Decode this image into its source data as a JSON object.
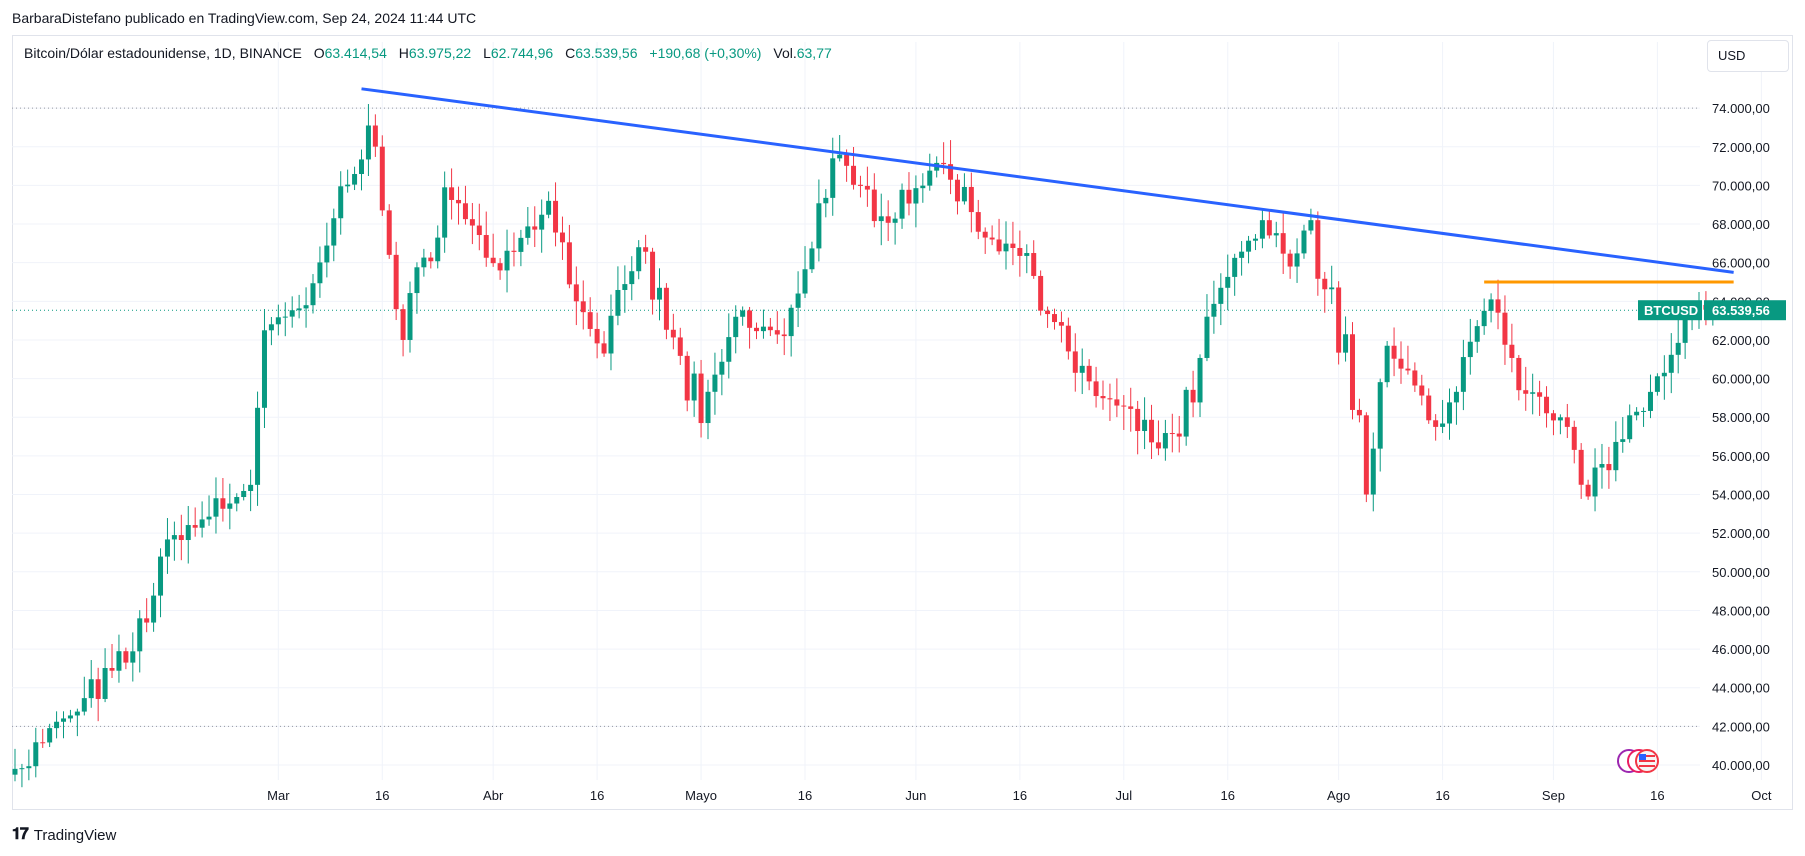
{
  "header": {
    "published": "BarbaraDistefano publicado en TradingView.com, Sep 24, 2024 11:44 UTC"
  },
  "legend": {
    "symbol": "Bitcoin/Dólar estadounidense, 1D, BINANCE",
    "o_label": "O",
    "o_value": "63.414,54",
    "h_label": "H",
    "h_value": "63.975,22",
    "l_label": "L",
    "l_value": "62.744,96",
    "c_label": "C",
    "c_value": "63.539,56",
    "change": "+190,68 (+0,30%)",
    "vol_label": "Vol.",
    "vol_value": "63,77"
  },
  "currency_button": "USD",
  "footer": {
    "brand": "TradingView",
    "logo_icon": "tradingview-logo-icon"
  },
  "colors": {
    "up": "#089981",
    "down": "#f23645",
    "trendline": "#2962ff",
    "resistance": "#ff9800",
    "grid": "#f0f3fa"
  },
  "chart_data": {
    "type": "candlestick",
    "symbol": "BTCUSD",
    "interval": "1D",
    "x_range": [
      "2024-01-23",
      "2024-09-24"
    ],
    "ylim": [
      39000,
      76500
    ],
    "y_ticks": [
      40000,
      42000,
      44000,
      46000,
      48000,
      50000,
      52000,
      54000,
      56000,
      58000,
      60000,
      62000,
      64000,
      66000,
      68000,
      70000,
      72000,
      74000
    ],
    "y_tick_labels": [
      "40.000,00",
      "42.000,00",
      "44.000,00",
      "46.000,00",
      "48.000,00",
      "50.000,00",
      "52.000,00",
      "54.000,00",
      "56.000,00",
      "58.000,00",
      "60.000,00",
      "62.000,00",
      "64.000,00",
      "66.000,00",
      "68.000,00",
      "70.000,00",
      "72.000,00",
      "74.000,00"
    ],
    "x_ticks": [
      {
        "date": "2024-03-01",
        "label": "Mar"
      },
      {
        "date": "2024-03-16",
        "label": "16"
      },
      {
        "date": "2024-04-01",
        "label": "Abr"
      },
      {
        "date": "2024-04-16",
        "label": "16"
      },
      {
        "date": "2024-05-01",
        "label": "Mayo"
      },
      {
        "date": "2024-05-16",
        "label": "16"
      },
      {
        "date": "2024-06-01",
        "label": "Jun"
      },
      {
        "date": "2024-06-16",
        "label": "16"
      },
      {
        "date": "2024-07-01",
        "label": "Jul"
      },
      {
        "date": "2024-07-16",
        "label": "16"
      },
      {
        "date": "2024-08-01",
        "label": "Ago"
      },
      {
        "date": "2024-08-16",
        "label": "16"
      },
      {
        "date": "2024-09-01",
        "label": "Sep"
      },
      {
        "date": "2024-09-16",
        "label": "16"
      },
      {
        "date": "2024-10-01",
        "label": "Oct"
      }
    ],
    "key_points": [
      {
        "date": "2024-01-23",
        "close": 39800
      },
      {
        "date": "2024-02-08",
        "close": 45300
      },
      {
        "date": "2024-02-15",
        "close": 51900
      },
      {
        "date": "2024-02-26",
        "close": 54500
      },
      {
        "date": "2024-02-28",
        "close": 62500
      },
      {
        "date": "2024-03-05",
        "close": 63800
      },
      {
        "date": "2024-03-09",
        "close": 68300
      },
      {
        "date": "2024-03-14",
        "close": 73100
      },
      {
        "date": "2024-03-19",
        "close": 62000
      },
      {
        "date": "2024-03-25",
        "close": 69900
      },
      {
        "date": "2024-04-02",
        "close": 65600
      },
      {
        "date": "2024-04-09",
        "close": 69200
      },
      {
        "date": "2024-04-13",
        "close": 64000
      },
      {
        "date": "2024-04-17",
        "close": 61300
      },
      {
        "date": "2024-04-22",
        "close": 66800
      },
      {
        "date": "2024-05-01",
        "close": 57700
      },
      {
        "date": "2024-05-06",
        "close": 63200
      },
      {
        "date": "2024-05-13",
        "close": 62200
      },
      {
        "date": "2024-05-20",
        "close": 71400
      },
      {
        "date": "2024-05-27",
        "close": 68400
      },
      {
        "date": "2024-06-05",
        "close": 71100
      },
      {
        "date": "2024-06-11",
        "close": 67300
      },
      {
        "date": "2024-06-17",
        "close": 66500
      },
      {
        "date": "2024-06-24",
        "close": 60300
      },
      {
        "date": "2024-07-05",
        "close": 56700
      },
      {
        "date": "2024-07-09",
        "close": 57000
      },
      {
        "date": "2024-07-15",
        "close": 64700
      },
      {
        "date": "2024-07-21",
        "close": 68200
      },
      {
        "date": "2024-07-25",
        "close": 65800
      },
      {
        "date": "2024-07-28",
        "close": 68200
      },
      {
        "date": "2024-08-04",
        "close": 58100
      },
      {
        "date": "2024-08-05",
        "close": 54000
      },
      {
        "date": "2024-08-08",
        "close": 61700
      },
      {
        "date": "2024-08-15",
        "close": 57500
      },
      {
        "date": "2024-08-23",
        "close": 64100
      },
      {
        "date": "2024-08-27",
        "close": 59400
      },
      {
        "date": "2024-09-03",
        "close": 57500
      },
      {
        "date": "2024-09-06",
        "close": 53900
      },
      {
        "date": "2024-09-12",
        "close": 58100
      },
      {
        "date": "2024-09-17",
        "close": 60300
      },
      {
        "date": "2024-09-21",
        "close": 63300
      },
      {
        "date": "2024-09-24",
        "close": 63539.56
      }
    ],
    "ohlc_last": {
      "open": 63414.54,
      "high": 63975.22,
      "low": 62744.96,
      "close": 63539.56
    },
    "current_price_label": "63.539,56",
    "symbol_label": "BTCUSD",
    "reference_lines": [
      74000,
      42000
    ],
    "trendline": {
      "from": {
        "date": "2024-03-13",
        "price": 75000
      },
      "to": {
        "date": "2024-09-27",
        "price": 65500
      }
    },
    "resistance_line": {
      "from": {
        "date": "2024-08-22",
        "price": 65000
      },
      "to": {
        "date": "2024-09-27",
        "price": 65000
      }
    },
    "grid": true
  }
}
